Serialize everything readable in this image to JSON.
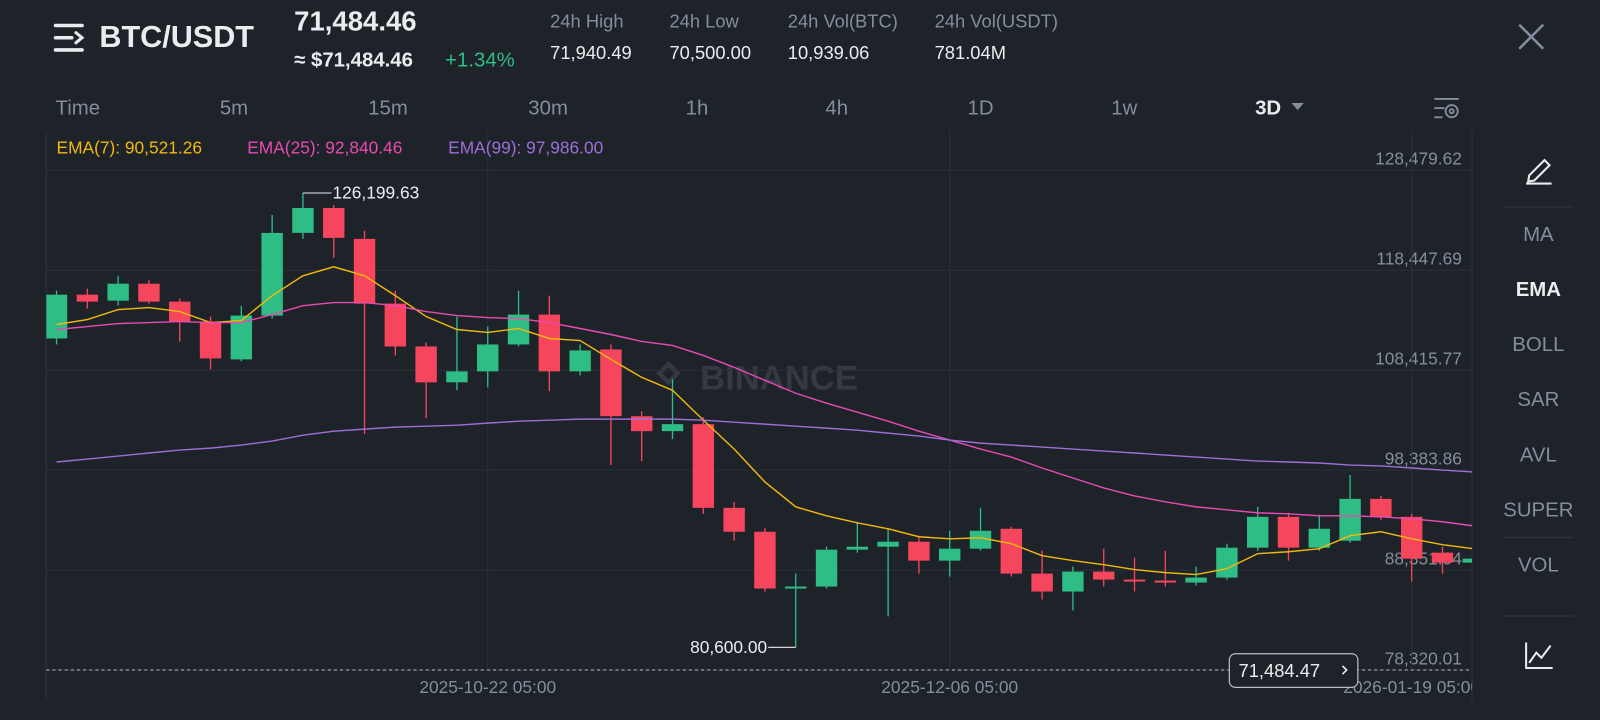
{
  "header": {
    "title": "BTC/USDT",
    "price": "71,484.46",
    "price_fiat": "≈ $71,484.46",
    "change": "+1.34%",
    "stats": [
      {
        "label": "24h High",
        "value": "71,940.49"
      },
      {
        "label": "24h Low",
        "value": "70,500.00"
      },
      {
        "label": "24h Vol(BTC)",
        "value": "10,939.06"
      },
      {
        "label": "24h Vol(USDT)",
        "value": "781.04M"
      }
    ]
  },
  "timeframes": {
    "items": [
      "Time",
      "5m",
      "15m",
      "30m",
      "1h",
      "4h",
      "1D",
      "1w",
      "3D"
    ],
    "active": 8
  },
  "indicators": {
    "items": [
      "MA",
      "EMA",
      "BOLL",
      "SAR",
      "AVL",
      "SUPER",
      "VOL"
    ],
    "active": 1
  },
  "watermark": "BINANCE",
  "chart_data": {
    "type": "candlestick",
    "up_color": "#2ebd85",
    "down_color": "#f6465d",
    "grid": true,
    "categories": [
      null,
      null,
      null,
      null,
      null,
      null,
      null,
      null,
      null,
      null,
      null,
      null,
      null,
      null,
      "2025-10-22 05:00",
      null,
      null,
      null,
      null,
      null,
      null,
      null,
      null,
      null,
      null,
      null,
      null,
      null,
      null,
      "2025-12-06 05:00",
      null,
      null,
      null,
      null,
      null,
      null,
      null,
      null,
      null,
      null,
      null,
      null,
      null,
      null,
      "2026-01-19 05:00",
      null,
      null
    ],
    "open": [
      111600,
      116000,
      115400,
      117100,
      115300,
      113300,
      109500,
      113900,
      122200,
      124700,
      121600,
      115100,
      110800,
      107200,
      108300,
      111000,
      114000,
      108300,
      110500,
      103800,
      102300,
      103000,
      94600,
      92200,
      86500,
      86700,
      90400,
      90700,
      91200,
      89300,
      90500,
      92500,
      88000,
      86200,
      88200,
      87400,
      87300,
      87100,
      87600,
      90600,
      93700,
      90600,
      91300,
      95500,
      93700,
      90100,
      89100
    ],
    "high": [
      116400,
      116600,
      117900,
      117500,
      115600,
      113800,
      114900,
      124000,
      126199.63,
      125000,
      122400,
      116400,
      111200,
      113800,
      112800,
      116400,
      115900,
      111000,
      111000,
      104300,
      107500,
      103700,
      95200,
      92600,
      88000,
      90700,
      93200,
      92500,
      91800,
      92300,
      94600,
      92700,
      90300,
      88700,
      90500,
      89600,
      90300,
      88700,
      91000,
      94700,
      94100,
      93900,
      97900,
      95800,
      94000,
      90700,
      89800
    ],
    "low": [
      111000,
      114600,
      114900,
      115100,
      111300,
      108500,
      109300,
      113600,
      121600,
      119700,
      102000,
      109900,
      103600,
      106400,
      106700,
      110800,
      106300,
      107900,
      98900,
      99300,
      101500,
      94000,
      91300,
      86200,
      80600,
      86500,
      90100,
      83700,
      88000,
      87700,
      90300,
      87700,
      85400,
      84300,
      86700,
      86200,
      86700,
      86800,
      87400,
      90300,
      89300,
      90300,
      91100,
      93400,
      87200,
      88000,
      86100
    ],
    "close": [
      116000,
      115300,
      117100,
      115300,
      113300,
      109600,
      113900,
      122200,
      124700,
      121700,
      115100,
      110800,
      107200,
      108300,
      111000,
      114000,
      108300,
      110400,
      103800,
      102300,
      103000,
      94600,
      92200,
      86500,
      86700,
      90400,
      90700,
      91200,
      89300,
      90500,
      92300,
      88000,
      86200,
      88200,
      87400,
      87200,
      87100,
      87600,
      90600,
      93700,
      90600,
      92500,
      95500,
      93700,
      89500,
      89100,
      89500
    ],
    "annotations": {
      "max": "126,199.63",
      "min": "80,600.00"
    },
    "series": [
      {
        "legend": "EMA(7): 90,521.26",
        "color": "#f0b90b",
        "values": [
          113000,
          113500,
          114500,
          114700,
          114300,
          113200,
          113400,
          115900,
          117900,
          118800,
          117900,
          115900,
          113800,
          112500,
          112200,
          112600,
          111600,
          111400,
          109500,
          107700,
          106400,
          103400,
          100500,
          97200,
          94700,
          93800,
          93100,
          92500,
          91700,
          91500,
          91600,
          91000,
          89800,
          89300,
          88900,
          88400,
          88100,
          87900,
          88500,
          90000,
          90200,
          90500,
          91800,
          92200,
          91500,
          90900,
          90500
        ]
      },
      {
        "legend": "EMA(25): 92,840.46",
        "color": "#e84bb0",
        "values": [
          112500,
          112800,
          113100,
          113200,
          113300,
          113200,
          113200,
          114000,
          114900,
          115200,
          115200,
          114900,
          114300,
          113900,
          113700,
          113600,
          113200,
          112600,
          112000,
          111300,
          110900,
          109900,
          108700,
          107400,
          106100,
          105100,
          104200,
          103300,
          102300,
          101400,
          100500,
          99700,
          98600,
          97600,
          96600,
          95800,
          95200,
          94700,
          94400,
          94100,
          94000,
          93800,
          93800,
          93700,
          93500,
          93200,
          92800
        ]
      },
      {
        "legend": "EMA(99): 97,986.00",
        "color": "#9c6fd8",
        "values": [
          99200,
          99500,
          99800,
          100100,
          100400,
          100600,
          100900,
          101300,
          101900,
          102300,
          102500,
          102700,
          102800,
          102900,
          103100,
          103300,
          103400,
          103500,
          103500,
          103500,
          103500,
          103400,
          103200,
          103000,
          102800,
          102600,
          102400,
          102100,
          101800,
          101400,
          101100,
          100900,
          100700,
          100500,
          100300,
          100100,
          99900,
          99700,
          99500,
          99300,
          99200,
          99100,
          98900,
          98800,
          98600,
          98400,
          98200
        ]
      }
    ],
    "ylim": [
      78320.01,
      132270
    ],
    "yticks": [
      {
        "value": 128479.62,
        "label": "128,479.62"
      },
      {
        "value": 118447.69,
        "label": "118,447.69"
      },
      {
        "value": 108415.77,
        "label": "108,415.77"
      },
      {
        "value": 98383.86,
        "label": "98,383.86"
      },
      {
        "value": 88351.94,
        "label": "88,351.94"
      },
      {
        "value": 78320.01,
        "label": "78,320.01"
      }
    ],
    "price_line": {
      "value": 71484.47,
      "label": "71,484.47"
    }
  }
}
